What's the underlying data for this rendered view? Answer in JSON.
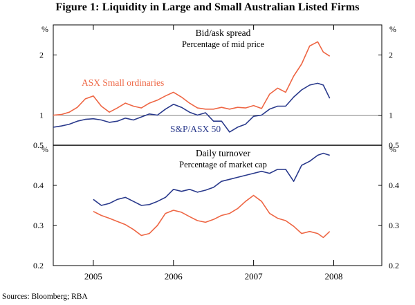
{
  "figure_title": "Figure 1: Liquidity in Large and Small Australian Listed Firms",
  "sources": "Sources:   Bloomberg; RBA",
  "colors": {
    "series_small": "#ee6644",
    "series_large": "#2a3a8c",
    "axis": "#000000"
  },
  "chart_data": [
    {
      "type": "line",
      "title": "Bid/ask spread",
      "subtitle": "Percentage of mid price",
      "ylabel": "%",
      "ylim": [
        0.5,
        2.5
      ],
      "yticks": [
        1,
        2
      ],
      "xlim": [
        2004.5,
        2008.6
      ],
      "x": [
        2004.5,
        2004.6,
        2004.7,
        2004.8,
        2004.9,
        2005.0,
        2005.1,
        2005.2,
        2005.3,
        2005.4,
        2005.5,
        2005.6,
        2005.7,
        2005.8,
        2005.9,
        2006.0,
        2006.1,
        2006.2,
        2006.3,
        2006.4,
        2006.5,
        2006.6,
        2006.7,
        2006.8,
        2006.9,
        2007.0,
        2007.1,
        2007.2,
        2007.3,
        2007.4,
        2007.5,
        2007.6,
        2007.7,
        2007.8,
        2007.87,
        2007.95
      ],
      "series": [
        {
          "name": "ASX Small ordinaries",
          "color_key": "series_small",
          "values": [
            1.0,
            1.01,
            1.05,
            1.13,
            1.27,
            1.32,
            1.15,
            1.05,
            1.12,
            1.2,
            1.15,
            1.12,
            1.2,
            1.25,
            1.32,
            1.38,
            1.3,
            1.2,
            1.12,
            1.1,
            1.1,
            1.13,
            1.1,
            1.13,
            1.12,
            1.16,
            1.11,
            1.35,
            1.45,
            1.38,
            1.65,
            1.85,
            2.15,
            2.22,
            2.05,
            1.98
          ]
        },
        {
          "name": "S&P/ASX 50",
          "color_key": "series_large",
          "values": [
            0.8,
            0.82,
            0.85,
            0.9,
            0.93,
            0.94,
            0.92,
            0.88,
            0.9,
            0.95,
            0.92,
            0.97,
            1.02,
            1.0,
            1.1,
            1.18,
            1.13,
            1.05,
            1.0,
            1.04,
            0.9,
            0.9,
            0.72,
            0.8,
            0.85,
            0.98,
            1.0,
            1.1,
            1.15,
            1.15,
            1.3,
            1.42,
            1.5,
            1.53,
            1.5,
            1.28
          ]
        }
      ],
      "annotations": [
        {
          "text": "ASX Small ordinaries",
          "series": 0
        },
        {
          "text": "S&P/ASX 50",
          "series": 1
        }
      ]
    },
    {
      "type": "line",
      "title": "Daily turnover",
      "subtitle": "Percentage of market cap",
      "ylabel": "%",
      "ylim": [
        0.2,
        0.5
      ],
      "yticks": [
        0.2,
        0.3,
        0.4,
        0.5
      ],
      "xlim": [
        2004.5,
        2008.6
      ],
      "xticklabels": [
        "2005",
        "2006",
        "2007",
        "2008"
      ],
      "x": [
        2005.0,
        2005.1,
        2005.2,
        2005.3,
        2005.4,
        2005.5,
        2005.6,
        2005.7,
        2005.8,
        2005.9,
        2006.0,
        2006.1,
        2006.2,
        2006.3,
        2006.4,
        2006.5,
        2006.6,
        2006.7,
        2006.8,
        2006.9,
        2007.0,
        2007.1,
        2007.2,
        2007.3,
        2007.4,
        2007.5,
        2007.6,
        2007.7,
        2007.8,
        2007.87,
        2007.95
      ],
      "series": [
        {
          "name": "Small ordinaries",
          "color_key": "series_small",
          "values": [
            0.335,
            0.325,
            0.318,
            0.31,
            0.302,
            0.29,
            0.275,
            0.28,
            0.3,
            0.33,
            0.338,
            0.333,
            0.322,
            0.312,
            0.308,
            0.315,
            0.325,
            0.33,
            0.342,
            0.36,
            0.375,
            0.36,
            0.33,
            0.318,
            0.312,
            0.298,
            0.28,
            0.285,
            0.28,
            0.27,
            0.285
          ]
        },
        {
          "name": "S&P/ASX 50",
          "color_key": "series_large",
          "values": [
            0.365,
            0.35,
            0.355,
            0.365,
            0.37,
            0.36,
            0.35,
            0.352,
            0.36,
            0.37,
            0.39,
            0.385,
            0.39,
            0.383,
            0.388,
            0.395,
            0.41,
            0.415,
            0.42,
            0.425,
            0.43,
            0.435,
            0.43,
            0.44,
            0.44,
            0.41,
            0.45,
            0.46,
            0.475,
            0.48,
            0.475
          ]
        }
      ]
    }
  ]
}
